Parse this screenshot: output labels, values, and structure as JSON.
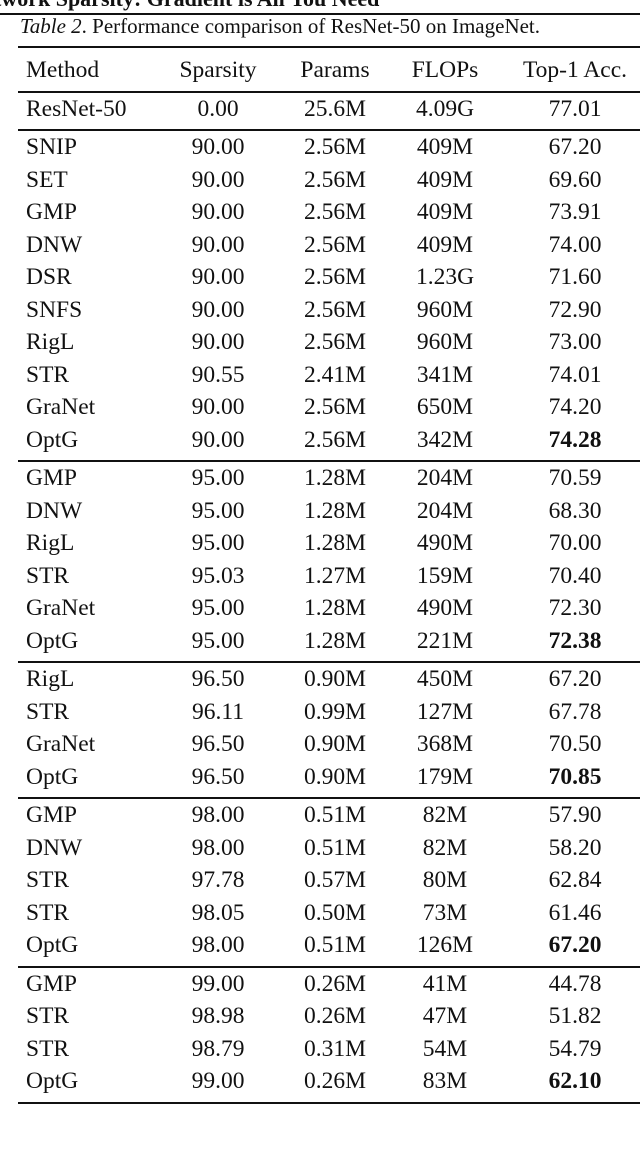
{
  "running_header": "twork Sparsity: Gradient is All You Need",
  "caption": {
    "label": "Table 2",
    "text": ". Performance comparison of ResNet-50 on ImageNet."
  },
  "columns": [
    "Method",
    "Sparsity",
    "Params",
    "FLOPs",
    "Top-1 Acc."
  ],
  "groups": [
    [
      {
        "cells": [
          "ResNet-50",
          "0.00",
          "25.6M",
          "4.09G",
          "77.01"
        ]
      }
    ],
    [
      {
        "cells": [
          "SNIP",
          "90.00",
          "2.56M",
          "409M",
          "67.20"
        ]
      },
      {
        "cells": [
          "SET",
          "90.00",
          "2.56M",
          "409M",
          "69.60"
        ]
      },
      {
        "cells": [
          "GMP",
          "90.00",
          "2.56M",
          "409M",
          "73.91"
        ]
      },
      {
        "cells": [
          "DNW",
          "90.00",
          "2.56M",
          "409M",
          "74.00"
        ]
      },
      {
        "cells": [
          "DSR",
          "90.00",
          "2.56M",
          "1.23G",
          "71.60"
        ]
      },
      {
        "cells": [
          "SNFS",
          "90.00",
          "2.56M",
          "960M",
          "72.90"
        ]
      },
      {
        "cells": [
          "RigL",
          "90.00",
          "2.56M",
          "960M",
          "73.00"
        ]
      },
      {
        "cells": [
          "STR",
          "90.55",
          "2.41M",
          "341M",
          "74.01"
        ]
      },
      {
        "cells": [
          "GraNet",
          "90.00",
          "2.56M",
          "650M",
          "74.20"
        ]
      },
      {
        "cells": [
          "OptG",
          "90.00",
          "2.56M",
          "342M",
          "74.28"
        ],
        "bold": true
      }
    ],
    [
      {
        "cells": [
          "GMP",
          "95.00",
          "1.28M",
          "204M",
          "70.59"
        ]
      },
      {
        "cells": [
          "DNW",
          "95.00",
          "1.28M",
          "204M",
          "68.30"
        ]
      },
      {
        "cells": [
          "RigL",
          "95.00",
          "1.28M",
          "490M",
          "70.00"
        ]
      },
      {
        "cells": [
          "STR",
          "95.03",
          "1.27M",
          "159M",
          "70.40"
        ]
      },
      {
        "cells": [
          "GraNet",
          "95.00",
          "1.28M",
          "490M",
          "72.30"
        ]
      },
      {
        "cells": [
          "OptG",
          "95.00",
          "1.28M",
          "221M",
          "72.38"
        ],
        "bold": true
      }
    ],
    [
      {
        "cells": [
          "RigL",
          "96.50",
          "0.90M",
          "450M",
          "67.20"
        ]
      },
      {
        "cells": [
          "STR",
          "96.11",
          "0.99M",
          "127M",
          "67.78"
        ]
      },
      {
        "cells": [
          "GraNet",
          "96.50",
          "0.90M",
          "368M",
          "70.50"
        ]
      },
      {
        "cells": [
          "OptG",
          "96.50",
          "0.90M",
          "179M",
          "70.85"
        ],
        "bold": true
      }
    ],
    [
      {
        "cells": [
          "GMP",
          "98.00",
          "0.51M",
          "82M",
          "57.90"
        ]
      },
      {
        "cells": [
          "DNW",
          "98.00",
          "0.51M",
          "82M",
          "58.20"
        ]
      },
      {
        "cells": [
          "STR",
          "97.78",
          "0.57M",
          "80M",
          "62.84"
        ]
      },
      {
        "cells": [
          "STR",
          "98.05",
          "0.50M",
          "73M",
          "61.46"
        ]
      },
      {
        "cells": [
          "OptG",
          "98.00",
          "0.51M",
          "126M",
          "67.20"
        ],
        "bold": true
      }
    ],
    [
      {
        "cells": [
          "GMP",
          "99.00",
          "0.26M",
          "41M",
          "44.78"
        ]
      },
      {
        "cells": [
          "STR",
          "98.98",
          "0.26M",
          "47M",
          "51.82"
        ]
      },
      {
        "cells": [
          "STR",
          "98.79",
          "0.31M",
          "54M",
          "54.79"
        ]
      },
      {
        "cells": [
          "OptG",
          "99.00",
          "0.26M",
          "83M",
          "62.10"
        ],
        "bold": true
      }
    ]
  ]
}
